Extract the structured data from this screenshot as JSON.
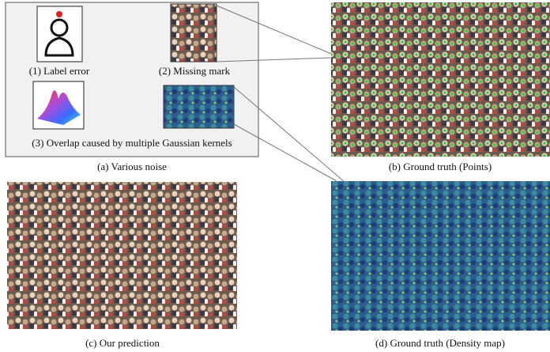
{
  "panel_a": {
    "caption": "(a) Various noise",
    "items": [
      {
        "caption": "(1) Label error"
      },
      {
        "caption": "(2) Missing mark"
      },
      {
        "caption": "(3) Overlap caused by multiple Gaussian kernels"
      }
    ]
  },
  "panel_b": {
    "caption": "(b) Ground truth (Points)"
  },
  "panel_c": {
    "caption": "(c) Our prediction"
  },
  "panel_d": {
    "caption": "(d) Ground truth (Density map)"
  }
}
